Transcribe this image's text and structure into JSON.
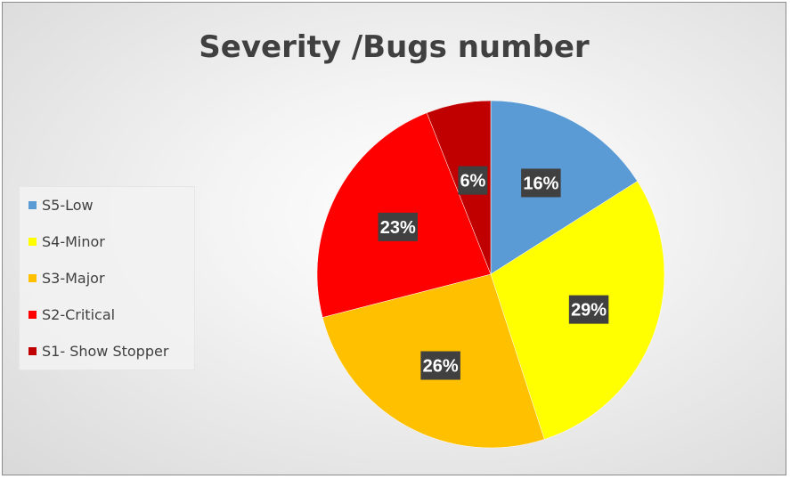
{
  "chart_data": {
    "type": "pie",
    "title": "Severity /Bugs number",
    "categories": [
      "S5-Low",
      "S4-Minor",
      "S3-Major",
      "S2-Critical",
      "S1- Show Stopper"
    ],
    "values": [
      16,
      29,
      26,
      23,
      6
    ],
    "data_labels": [
      "16%",
      "29%",
      "26%",
      "23%",
      "6%"
    ],
    "colors": [
      "#5b9bd5",
      "#ffff00",
      "#ffc000",
      "#ff0000",
      "#c00000"
    ],
    "legend_position": "left"
  }
}
